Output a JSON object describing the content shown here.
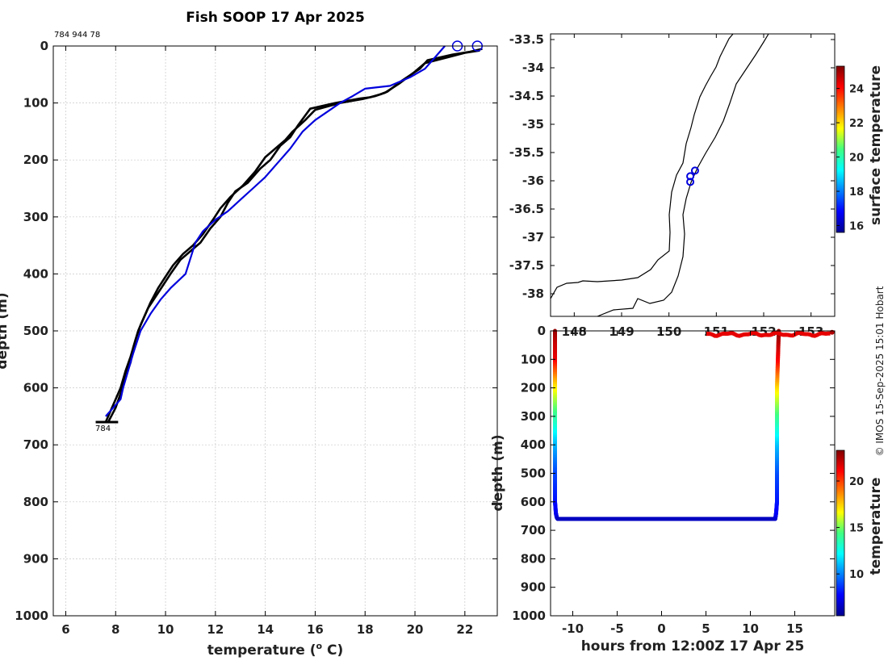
{
  "chart_data": [
    {
      "type": "line",
      "title": "Fish SOOP 17 Apr 2025",
      "xlabel": "temperature (",
      "xlabel_sup": "o",
      "xlabel_end": " C)",
      "ylabel": "depth (m)",
      "xlim": [
        5.5,
        23.3
      ],
      "ylim": [
        0,
        1000
      ],
      "y_reversed": true,
      "grid": true,
      "xticks": [
        6,
        8,
        10,
        12,
        14,
        16,
        18,
        20,
        22
      ],
      "yticks": [
        0,
        100,
        200,
        300,
        400,
        500,
        600,
        700,
        800,
        900,
        1000
      ],
      "drop_ids_label": "784 944 78",
      "bottom_label": "784",
      "series": [
        {
          "color": "#000000",
          "x": [
            22.7,
            22.2,
            21.5,
            20.5,
            20.2,
            19.5,
            18.9,
            18.6,
            18.2,
            17.8,
            16.8,
            15.8,
            15.3,
            15.0,
            14.6,
            14.2,
            13.8,
            13.3,
            12.8,
            12.5,
            12.2,
            11.8,
            11.4,
            11.0,
            10.6,
            10.2,
            9.9,
            9.6,
            9.3,
            9.1,
            8.9,
            8.7,
            8.6,
            8.4,
            8.2,
            8.0,
            7.7
          ],
          "y": [
            5,
            10,
            15,
            25,
            40,
            60,
            80,
            85,
            90,
            92,
            100,
            110,
            140,
            160,
            175,
            200,
            215,
            240,
            255,
            275,
            300,
            320,
            345,
            360,
            375,
            400,
            420,
            440,
            460,
            480,
            500,
            530,
            555,
            580,
            610,
            635,
            660
          ]
        },
        {
          "color": "#000000",
          "x": [
            22.6,
            22.0,
            21.3,
            20.4,
            20.0,
            19.4,
            18.8,
            18.4,
            17.9,
            17.0,
            16.0,
            15.6,
            15.1,
            14.8,
            14.4,
            14.0,
            13.6,
            13.1,
            12.6,
            12.2,
            11.9,
            11.5,
            11.1,
            10.7,
            10.3,
            10.0,
            9.7,
            9.4,
            9.2,
            9.0,
            8.8,
            8.6,
            8.4,
            8.2,
            7.9,
            7.6
          ],
          "y": [
            8,
            12,
            20,
            30,
            45,
            65,
            82,
            88,
            93,
            100,
            112,
            130,
            150,
            165,
            180,
            195,
            220,
            245,
            265,
            285,
            305,
            330,
            350,
            365,
            385,
            405,
            425,
            450,
            470,
            490,
            515,
            545,
            570,
            600,
            630,
            660
          ]
        },
        {
          "color": "#0000dd",
          "x": [
            21.2,
            20.8,
            20.4,
            19.8,
            19.0,
            18.0,
            17.5,
            17.0,
            16.5,
            16.0,
            15.5,
            15.0,
            14.5,
            14.0,
            13.5,
            13.0,
            12.5,
            12.0,
            11.5,
            11.2,
            10.8,
            10.2,
            9.8,
            9.4,
            9.0,
            8.7,
            8.5,
            8.3,
            8.2,
            8.0,
            7.8,
            7.6
          ],
          "y": [
            0,
            20,
            40,
            55,
            70,
            75,
            88,
            100,
            115,
            130,
            150,
            180,
            205,
            230,
            250,
            270,
            290,
            305,
            325,
            345,
            400,
            425,
            445,
            470,
            500,
            540,
            570,
            600,
            620,
            630,
            640,
            650
          ]
        }
      ],
      "surface_markers": [
        {
          "x": 21.7,
          "y": 0
        },
        {
          "x": 22.5,
          "y": 0
        }
      ],
      "bottom_marker": {
        "x": [
          7.2,
          8.1
        ],
        "y": 660
      }
    },
    {
      "type": "scatter",
      "subtype": "map",
      "xlim": [
        147.5,
        153.5
      ],
      "ylim": [
        -38.4,
        -33.4
      ],
      "xticks": [
        148,
        149,
        150,
        151,
        152,
        153
      ],
      "yticks": [
        -33.5,
        -34,
        -34.5,
        -35,
        -35.5,
        -36,
        -36.5,
        -37,
        -37.5,
        -38
      ],
      "points": [
        {
          "lon": 150.55,
          "lat": -35.82
        },
        {
          "lon": 150.45,
          "lat": -35.92
        },
        {
          "lon": 150.45,
          "lat": -36.02
        }
      ],
      "colorbar": {
        "label": "surface temperature",
        "ticks": [
          16,
          18,
          20,
          22,
          24
        ],
        "range": [
          15.6,
          25.3
        ]
      }
    },
    {
      "type": "scatter",
      "xlabel": "hours from 12:00Z 17 Apr 25",
      "ylabel": "depth (m)",
      "xlim": [
        -12.5,
        19.5
      ],
      "ylim": [
        0,
        1000
      ],
      "y_reversed": true,
      "xticks": [
        -10,
        -5,
        0,
        5,
        10,
        15
      ],
      "yticks": [
        0,
        100,
        200,
        300,
        400,
        500,
        600,
        700,
        800,
        900,
        1000
      ],
      "track": {
        "hours": [
          -12.0,
          -12.0,
          -12.0,
          -12.0,
          -12.0,
          -12.0,
          -12.0,
          -12.0,
          -11.9,
          -11.8,
          -11.7,
          0,
          12.8,
          12.9,
          13.0,
          13.0,
          13.0,
          13.0,
          13.0,
          13.1,
          13.2
        ],
        "depth": [
          0,
          50,
          100,
          200,
          300,
          400,
          500,
          600,
          640,
          655,
          660,
          660,
          660,
          640,
          600,
          500,
          400,
          300,
          200,
          100,
          0
        ],
        "temperature": [
          23,
          22,
          21.5,
          17,
          14,
          11,
          9,
          8,
          7.5,
          7.2,
          6.5,
          6.5,
          6.5,
          7.5,
          8,
          9,
          11,
          14,
          17,
          21,
          23
        ]
      },
      "surface_track": {
        "hours_range": [
          5,
          19
        ],
        "depth": 12,
        "temperature": 21.5
      },
      "colorbar": {
        "label": "temperature",
        "ticks": [
          10,
          15,
          20
        ],
        "range": [
          5.5,
          23.3
        ]
      }
    }
  ],
  "credit": "© IMOS 15-Sep-2025 15:01 Hobart"
}
